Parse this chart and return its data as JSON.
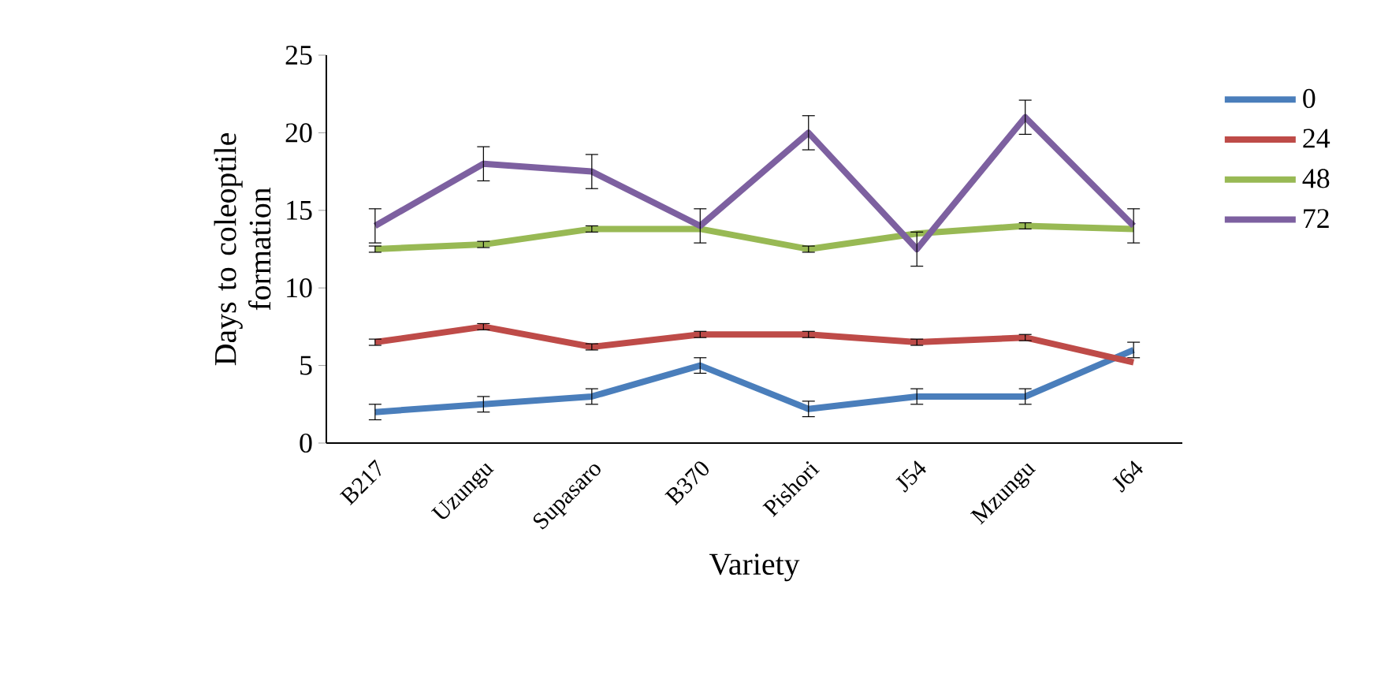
{
  "chart_data": {
    "type": "line",
    "xlabel": "Variety",
    "ylabel": "Days to coleoptile formation",
    "categories": [
      "B217",
      "Uzungu",
      "Supasaro",
      "B370",
      "Pishori",
      "J54",
      "Mzungu",
      "J64"
    ],
    "series": [
      {
        "name": "0",
        "color": "#4a7ebb",
        "values": [
          2.0,
          2.5,
          3.0,
          5.0,
          2.2,
          3.0,
          3.0,
          6.0
        ],
        "errors": [
          0.5,
          0.5,
          0.5,
          0.5,
          0.5,
          0.5,
          0.5,
          0.5
        ]
      },
      {
        "name": "24",
        "color": "#be4b48",
        "values": [
          6.5,
          7.5,
          6.2,
          7.0,
          7.0,
          6.5,
          6.8,
          5.2
        ],
        "errors": [
          0.2,
          0.2,
          0.2,
          0.2,
          0.2,
          0.2,
          0.2,
          null
        ]
      },
      {
        "name": "48",
        "color": "#98b954",
        "values": [
          12.5,
          12.8,
          13.8,
          13.8,
          12.5,
          13.5,
          14.0,
          13.8
        ],
        "errors": [
          0.2,
          0.2,
          0.2,
          null,
          0.2,
          null,
          0.2,
          null
        ]
      },
      {
        "name": "72",
        "color": "#7d60a0",
        "values": [
          14.0,
          18.0,
          17.5,
          14.0,
          20.0,
          12.5,
          21.0,
          14.0
        ],
        "errors": [
          1.1,
          1.1,
          1.1,
          1.1,
          1.1,
          1.1,
          1.1,
          1.1
        ]
      }
    ],
    "ylim": [
      0,
      25
    ],
    "yticks": [
      0,
      5,
      10,
      15,
      20,
      25
    ],
    "grid": false,
    "legend": "right",
    "marker": "none",
    "line_style": "solid"
  }
}
